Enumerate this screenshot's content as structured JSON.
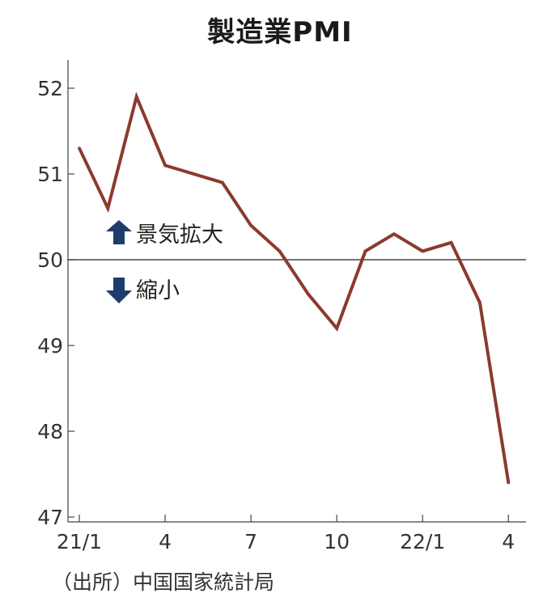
{
  "chart_data": {
    "type": "line",
    "title": "製造業PMI",
    "x": [
      "21/1",
      "21/2",
      "21/3",
      "21/4",
      "21/5",
      "21/6",
      "21/7",
      "21/8",
      "21/9",
      "21/10",
      "21/11",
      "21/12",
      "22/1",
      "22/2",
      "22/3",
      "22/4"
    ],
    "x_tick_labels": [
      {
        "index": 0,
        "label": "21/1"
      },
      {
        "index": 3,
        "label": "4"
      },
      {
        "index": 6,
        "label": "7"
      },
      {
        "index": 9,
        "label": "10"
      },
      {
        "index": 12,
        "label": "22/1"
      },
      {
        "index": 15,
        "label": "4"
      }
    ],
    "series": [
      {
        "values": [
          51.3,
          50.6,
          51.9,
          51.1,
          51.0,
          50.9,
          50.4,
          50.1,
          49.6,
          49.2,
          50.1,
          50.3,
          50.1,
          50.2,
          49.5,
          47.4
        ],
        "color": "#8b3a2e"
      }
    ],
    "ylim": [
      47,
      52.3
    ],
    "y_ticks": [
      47,
      48,
      49,
      50,
      51,
      52
    ],
    "reference_line": 50,
    "annotations": [
      {
        "text": "景気拡大",
        "icon": "arrow-up-icon"
      },
      {
        "text": "縮小",
        "icon": "arrow-down-icon"
      }
    ],
    "arrow_color": "#1d3e6b",
    "source": "（出所）中国国家統計局"
  }
}
